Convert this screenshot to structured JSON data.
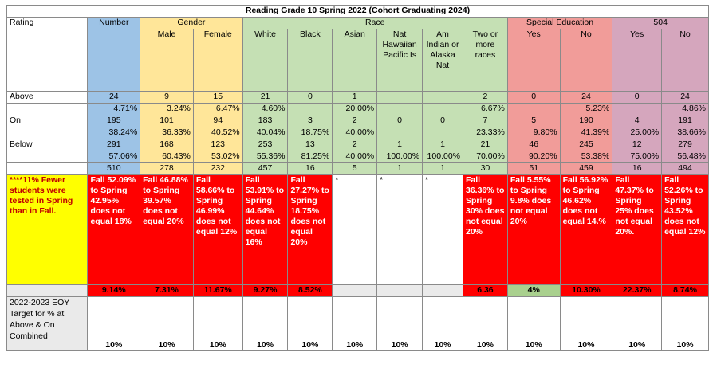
{
  "title": "Reading  Grade 10 Spring 2022  (Cohort Graduating 2024)",
  "groups": {
    "rating": "Rating",
    "number": "Number",
    "gender": "Gender",
    "race": "Race",
    "special_education": "Special Education",
    "section504": "504"
  },
  "subheaders": [
    "Male",
    "Female",
    "White",
    "Black",
    "Asian",
    "Nat Hawaiian Pacific Is",
    "Am Indian or Alaska Nat",
    "Two or more races",
    "Yes",
    "No",
    "Yes",
    "No"
  ],
  "rows": [
    {
      "label": "Above",
      "counts": [
        "24",
        "9",
        "15",
        "21",
        "0",
        "1",
        "",
        "",
        "2",
        "0",
        "24",
        "0",
        "24"
      ],
      "pcts": [
        "4.71%",
        "3.24%",
        "6.47%",
        "4.60%",
        "",
        "20.00%",
        "",
        "",
        "6.67%",
        "",
        "5.23%",
        "",
        "4.86%"
      ]
    },
    {
      "label": "On",
      "counts": [
        "195",
        "101",
        "94",
        "183",
        "3",
        "2",
        "0",
        "0",
        "7",
        "5",
        "190",
        "4",
        "191"
      ],
      "pcts": [
        "38.24%",
        "36.33%",
        "40.52%",
        "40.04%",
        "18.75%",
        "40.00%",
        "",
        "",
        "23.33%",
        "9.80%",
        "41.39%",
        "25.00%",
        "38.66%"
      ]
    },
    {
      "label": "Below",
      "counts": [
        "291",
        "168",
        "123",
        "253",
        "13",
        "2",
        "1",
        "1",
        "21",
        "46",
        "245",
        "12",
        "279"
      ],
      "pcts": [
        "57.06%",
        "60.43%",
        "53.02%",
        "55.36%",
        "81.25%",
        "40.00%",
        "100.00%",
        "100.00%",
        "70.00%",
        "90.20%",
        "53.38%",
        "75.00%",
        "56.48%"
      ]
    }
  ],
  "totals": [
    "510",
    "278",
    "232",
    "457",
    "16",
    "5",
    "1",
    "1",
    "30",
    "51",
    "459",
    "16",
    "494"
  ],
  "note": "****11% Fewer students were tested in Spring than in Fall.",
  "fall_spring": [
    "Fall 52.09% to Spring 42.95% does not equal 18%",
    "Fall 46.88% to Spring 39.57% does not equal 20%",
    "Fall 58.66% to Spring 46.99% does not equal 12%",
    "Fall 53.91% to Spring 44.64% does not equal 16%",
    "Fall 27.27% to Spring 18.75% does not equal 20%",
    "*",
    "*",
    "*",
    "Fall 36.36% to Spring 30% does not equal 20%",
    "Fall 5.55% to Spring 9.8% does not equal 20%",
    "Fall 56.92% to Spring 46.62% does not equal 14.%",
    "Fall 47.37% to Spring 25% does not equal 20%.",
    "Fall 52.26% to Spring 43.52% does not equal 12%"
  ],
  "diffs": [
    "9.14%",
    "7.31%",
    "11.67%",
    "9.27%",
    "8.52%",
    "",
    "",
    "",
    "6.36",
    "4%",
    "10.30%",
    "22.37%",
    "8.74%"
  ],
  "target_label": "2022-2023 EOY Target for % at Above & On Combined",
  "targets": [
    "10%",
    "10%",
    "10%",
    "10%",
    "10%",
    "10%",
    "10%",
    "10%",
    "10%",
    "10%",
    "10%",
    "10%",
    "10%"
  ],
  "colors": {
    "number": "#9dc3e6",
    "gender": "#ffe699",
    "race": "#c5e0b4",
    "sped": "#f19c99",
    "s504": "#d5a6bd",
    "alert": "#ff0000",
    "note": "#ffff00"
  }
}
